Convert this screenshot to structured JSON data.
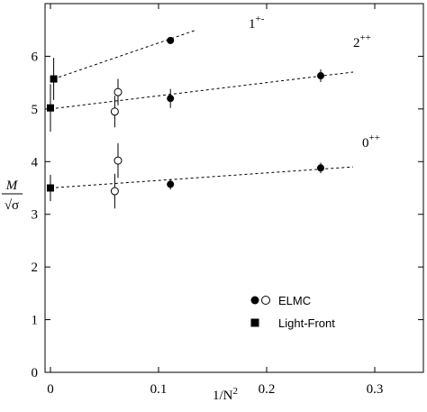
{
  "chart_data": {
    "type": "scatter",
    "xlabel": "1/N^2",
    "ylabel": "M/√σ",
    "xlim": [
      -0.005,
      0.345
    ],
    "ylim": [
      0,
      7
    ],
    "x_ticks": [
      "0",
      "0.1",
      "0.2",
      "0.3"
    ],
    "y_ticks": [
      "0",
      "1",
      "2",
      "3",
      "4",
      "5",
      "6"
    ],
    "series": [
      {
        "name": "ELMC",
        "marker": "filled-circle",
        "points": [
          {
            "x": 0.111,
            "y": 6.3,
            "err": 0.0
          },
          {
            "x": 0.111,
            "y": 5.2,
            "err": 0.18
          },
          {
            "x": 0.25,
            "y": 5.63,
            "err": 0.12
          },
          {
            "x": 0.111,
            "y": 3.57,
            "err": 0.1
          },
          {
            "x": 0.25,
            "y": 3.88,
            "err": 0.1
          }
        ]
      },
      {
        "name": "ELMC (open)",
        "marker": "open-circle",
        "points": [
          {
            "x": 0.0625,
            "y": 5.32,
            "err": 0.25
          },
          {
            "x": 0.0595,
            "y": 4.95,
            "err": 0.3
          },
          {
            "x": 0.0625,
            "y": 4.02,
            "err": 0.33
          },
          {
            "x": 0.0595,
            "y": 3.44,
            "err": 0.33
          }
        ]
      },
      {
        "name": "Light-Front",
        "marker": "filled-square",
        "points": [
          {
            "x": 0.003,
            "y": 5.57,
            "err": 0.4
          },
          {
            "x": 0.0,
            "y": 5.02,
            "err": 0.45
          },
          {
            "x": 0.0,
            "y": 3.5,
            "err": 0.25
          }
        ]
      }
    ],
    "fit_lines": [
      {
        "label": "1",
        "superscript": "+-",
        "x": [
          0.003,
          0.135
        ],
        "y": [
          5.57,
          6.5
        ]
      },
      {
        "label": "2",
        "superscript": "++",
        "x": [
          0.0,
          0.28
        ],
        "y": [
          5.0,
          5.7
        ]
      },
      {
        "label": "0",
        "superscript": "++",
        "x": [
          0.0,
          0.28
        ],
        "y": [
          3.5,
          3.9
        ]
      }
    ],
    "legend": {
      "position": "bottom-right",
      "entries": [
        {
          "label": "ELMC",
          "markers": [
            "filled-circle",
            "open-circle"
          ]
        },
        {
          "label": "Light-Front",
          "markers": [
            "filled-square"
          ]
        }
      ]
    },
    "grid": false
  }
}
